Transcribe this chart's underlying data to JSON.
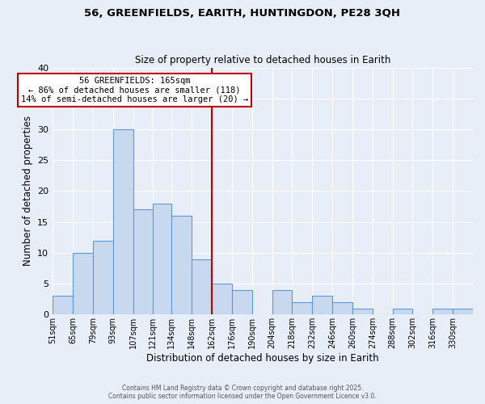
{
  "title": "56, GREENFIELDS, EARITH, HUNTINGDON, PE28 3QH",
  "subtitle": "Size of property relative to detached houses in Earith",
  "xlabel": "Distribution of detached houses by size in Earith",
  "ylabel": "Number of detached properties",
  "bin_labels": [
    "51sqm",
    "65sqm",
    "79sqm",
    "93sqm",
    "107sqm",
    "121sqm",
    "134sqm",
    "148sqm",
    "162sqm",
    "176sqm",
    "190sqm",
    "204sqm",
    "218sqm",
    "232sqm",
    "246sqm",
    "260sqm",
    "274sqm",
    "288sqm",
    "302sqm",
    "316sqm",
    "330sqm"
  ],
  "bar_heights": [
    3,
    10,
    12,
    30,
    17,
    18,
    16,
    9,
    5,
    4,
    0,
    4,
    2,
    3,
    2,
    1,
    0,
    1,
    0,
    1,
    1
  ],
  "bar_color": "#c8d9ef",
  "bar_edge_color": "#5b9bd5",
  "property_line_x": 162,
  "property_line_color": "#c00000",
  "annotation_text": "56 GREENFIELDS: 165sqm\n← 86% of detached houses are smaller (118)\n14% of semi-detached houses are larger (20) →",
  "annotation_box_color": "#ffffff",
  "annotation_box_edge": "#c00000",
  "ylim": [
    0,
    40
  ],
  "yticks": [
    0,
    5,
    10,
    15,
    20,
    25,
    30,
    35,
    40
  ],
  "footer_line1": "Contains HM Land Registry data © Crown copyright and database right 2025.",
  "footer_line2": "Contains public sector information licensed under the Open Government Licence v3.0.",
  "background_color": "#e8eef8",
  "grid_color": "#ffffff",
  "bin_edges": [
    51,
    65,
    79,
    93,
    107,
    121,
    134,
    148,
    162,
    176,
    190,
    204,
    218,
    232,
    246,
    260,
    274,
    288,
    302,
    316,
    330,
    344
  ]
}
